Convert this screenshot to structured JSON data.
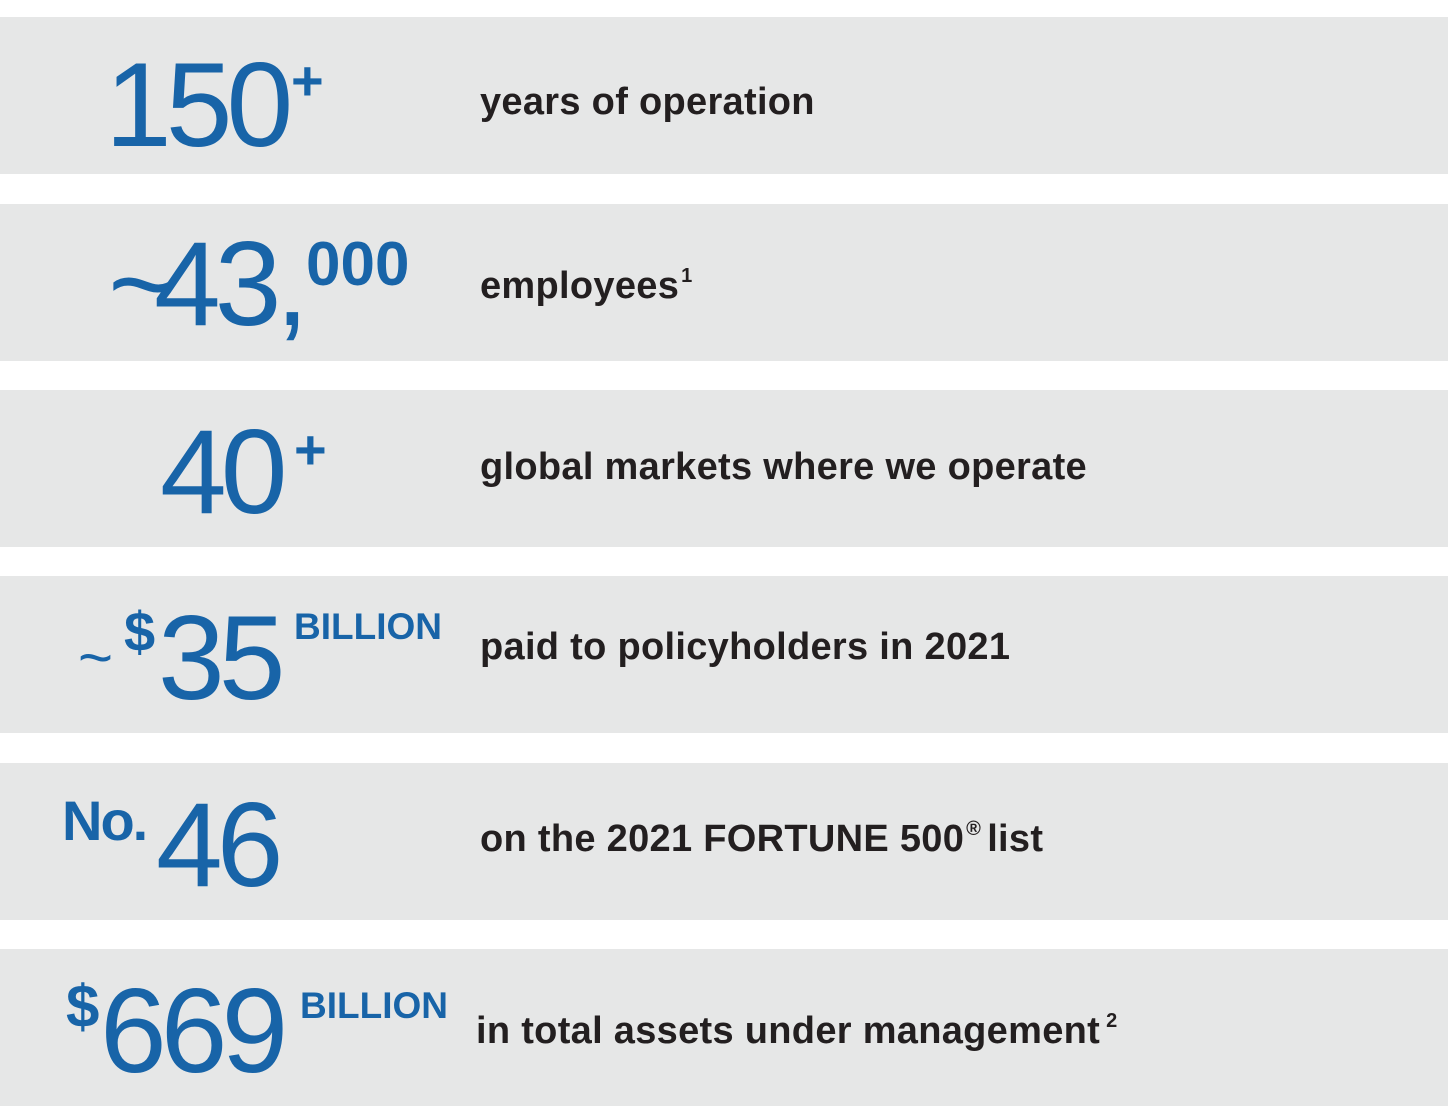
{
  "colors": {
    "accent": "#1864a8",
    "row_bg": "#e6e7e7",
    "text": "#231f20"
  },
  "stats": [
    {
      "prefix": "",
      "value": "150",
      "suffix": "+",
      "label": "years of operation",
      "note": ""
    },
    {
      "prefix": "~",
      "value": "43,",
      "suffix": "000",
      "label": "employees",
      "note": "1"
    },
    {
      "prefix": "",
      "value": "40",
      "suffix": "+",
      "label": "global markets where we operate",
      "note": ""
    },
    {
      "prefix": "~",
      "prefix2": "$",
      "value": "35",
      "suffix": "BILLION",
      "label": "paid to policyholders in 2021",
      "note": ""
    },
    {
      "prefix": "No.",
      "value": "46",
      "suffix": "",
      "label": "on the 2021 FORTUNE 500",
      "note": "®",
      "label_tail": "list"
    },
    {
      "prefix": "$",
      "value": "669",
      "suffix": "BILLION",
      "label": "in total assets under management",
      "note": "2"
    }
  ]
}
